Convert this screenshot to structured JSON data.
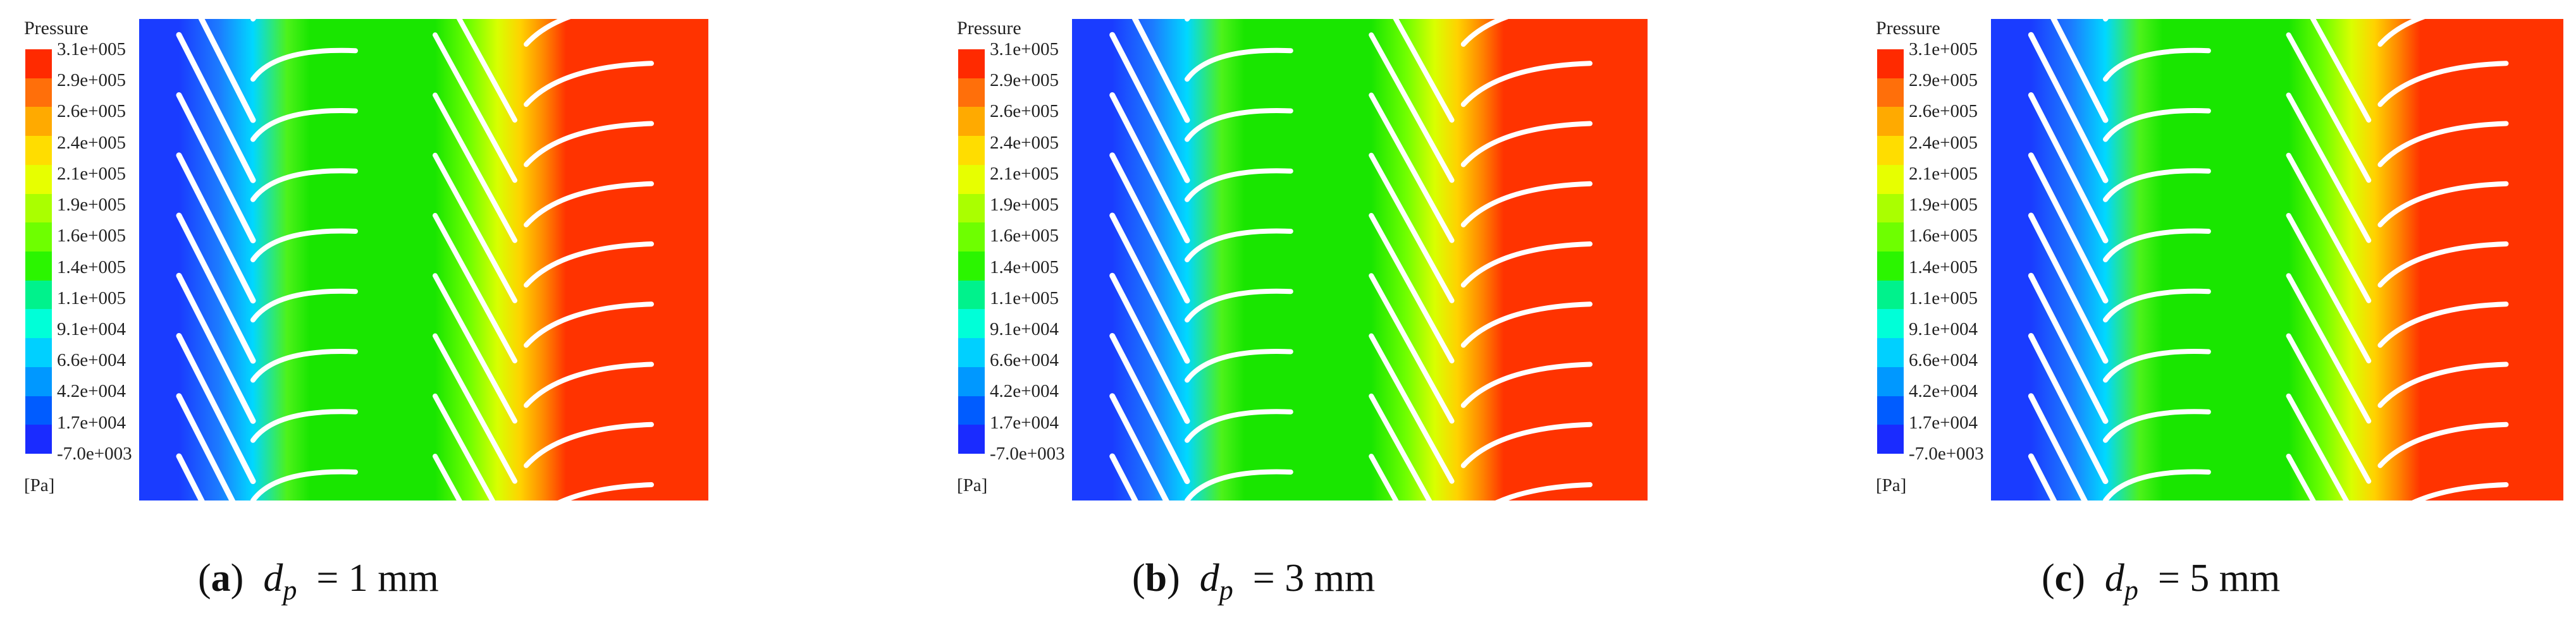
{
  "legend": {
    "title": "Pressure",
    "unit": "[Pa]",
    "levels": [
      "3.1e+005",
      "2.9e+005",
      "2.6e+005",
      "2.4e+005",
      "2.1e+005",
      "1.9e+005",
      "1.6e+005",
      "1.4e+005",
      "1.1e+005",
      "9.1e+004",
      "6.6e+004",
      "4.2e+004",
      "1.7e+004",
      "-7.0e+003"
    ],
    "colors": [
      "#ff2a00",
      "#ff6f0a",
      "#ffaa00",
      "#ffdd00",
      "#e7ff00",
      "#aaff00",
      "#6eff00",
      "#2bf500",
      "#00f28c",
      "#00ffd8",
      "#00d0ff",
      "#0098ff",
      "#005cff",
      "#1a2bff"
    ]
  },
  "panels": [
    {
      "id": "a",
      "label": "a",
      "var": "d",
      "sub": "p",
      "value": "= 1 mm"
    },
    {
      "id": "b",
      "label": "b",
      "var": "d",
      "sub": "p",
      "value": "= 3 mm"
    },
    {
      "id": "c",
      "label": "c",
      "var": "d",
      "sub": "p",
      "value": "= 5 mm"
    }
  ],
  "field_colors": {
    "inlet": "#1a3cff",
    "inlet_light": "#1c7bff",
    "mid": "#19e600",
    "mid_light": "#4df21a",
    "outlet": "#ff3300",
    "blade": "#ffffff"
  }
}
